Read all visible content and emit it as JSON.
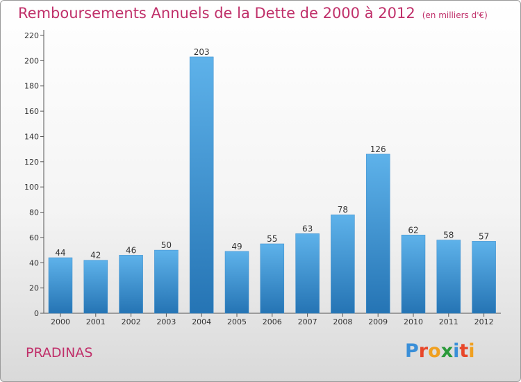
{
  "header": {
    "title": "Remboursements Annuels de la Dette de 2000 à 2012",
    "unit": "(en milliers d'€)"
  },
  "footer": {
    "town": "PRADINAS",
    "logo": [
      "P",
      "r",
      "o",
      "x",
      "i",
      "t",
      "i"
    ]
  },
  "colors": {
    "title": "#c0306a",
    "bar_light": "#5aaee6",
    "bar_dark": "#2a78b8",
    "logo": [
      "#3a8fd8",
      "#e8472a",
      "#f0a020",
      "#2a9a3a",
      "#3a8fd8",
      "#e8472a",
      "#f0a020"
    ]
  },
  "chart_data": {
    "type": "bar",
    "title": "Remboursements Annuels de la Dette de 2000 à 2012",
    "subtitle": "(en milliers d'€)",
    "categories": [
      "2000",
      "2001",
      "2002",
      "2003",
      "2004",
      "2005",
      "2006",
      "2007",
      "2008",
      "2009",
      "2010",
      "2011",
      "2012"
    ],
    "values": [
      44,
      42,
      46,
      50,
      203,
      49,
      55,
      63,
      78,
      126,
      62,
      58,
      57
    ],
    "ylim": [
      0,
      220
    ],
    "yticks": [
      0,
      20,
      40,
      60,
      80,
      100,
      120,
      140,
      160,
      180,
      200,
      220
    ],
    "grid": false,
    "legend": "none"
  }
}
